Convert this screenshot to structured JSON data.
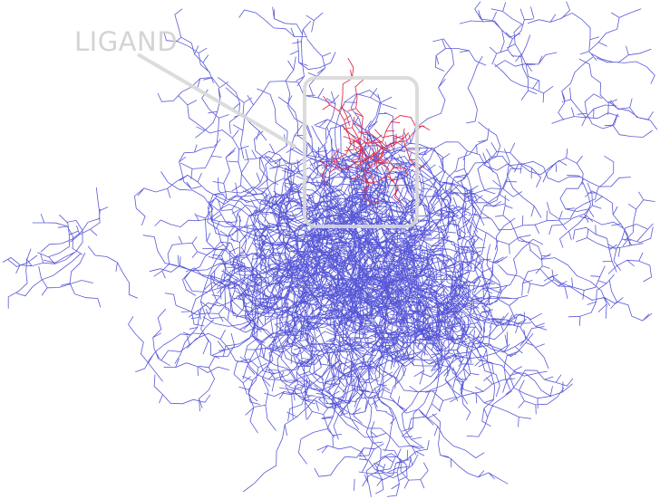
{
  "annotation": {
    "label": "LIGAND"
  }
}
